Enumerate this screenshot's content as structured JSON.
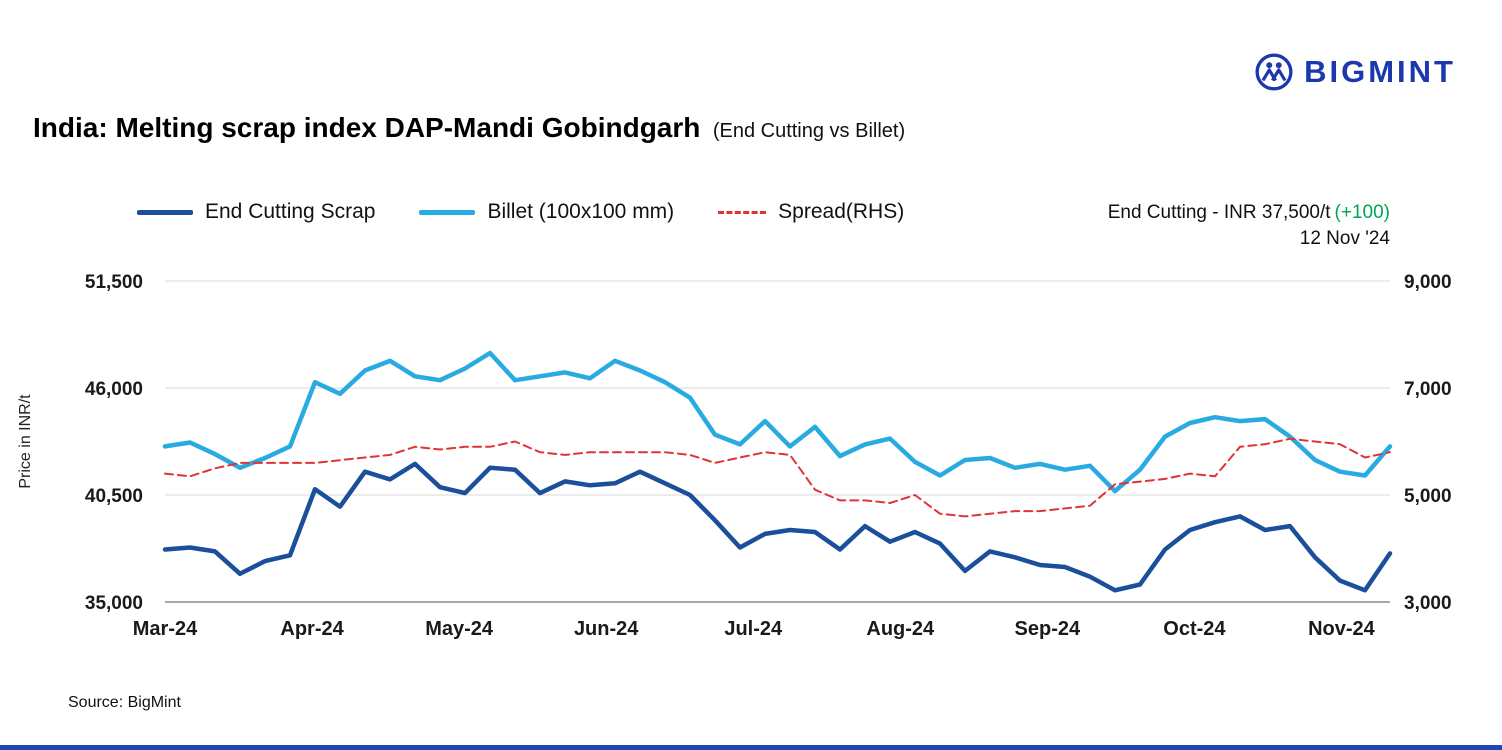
{
  "logo": {
    "text": "BIGMINT"
  },
  "title": {
    "main": "India: Melting scrap index DAP-Mandi Gobindgarh",
    "sub": "(End Cutting vs Billet)"
  },
  "annotation": {
    "text": "End Cutting - INR 37,500/t",
    "change": "(+100)",
    "date": "12 Nov '24"
  },
  "source": "Source: BigMint",
  "colors": {
    "navy": "#1b4e9b",
    "cyan": "#29abe2",
    "red": "#e03434",
    "green": "#00a651",
    "logo_blue": "#1b38ad",
    "grid": "#d9d9d9",
    "axis": "#8c8c8c",
    "footer_bar": "#2046b3"
  },
  "chart_data": {
    "type": "line",
    "title": "India: Melting scrap index DAP-Mandi Gobindgarh (End Cutting vs Billet)",
    "x_axis": {
      "tick_labels": [
        "Mar-24",
        "Apr-24",
        "May-24",
        "Jun-24",
        "Jul-24",
        "Aug-24",
        "Sep-24",
        "Oct-24",
        "Nov-24"
      ],
      "tick_months": [
        0,
        1,
        2,
        3,
        4,
        5,
        6,
        7,
        8
      ],
      "max_months": 8.33
    },
    "left_axis": {
      "label": "Price in INR/t",
      "min": 35000,
      "max": 51500,
      "ticks": [
        35000,
        40500,
        46000,
        51500
      ],
      "tick_labels": [
        "35,000",
        "40,500",
        "46,000",
        "51,500"
      ]
    },
    "right_axis": {
      "min": 3000,
      "max": 9000,
      "ticks": [
        3000,
        5000,
        7000,
        9000
      ],
      "tick_labels": [
        "3,000",
        "5,000",
        "7,000",
        "9,000"
      ]
    },
    "grid": "horizontal",
    "legend_position": "top",
    "series": [
      {
        "name": "End Cutting Scrap",
        "axis": "left",
        "color": "#1b4e9b",
        "style": "solid",
        "width": 4.5,
        "values": [
          37700,
          37800,
          37600,
          36450,
          37100,
          37400,
          40800,
          39900,
          41700,
          41300,
          42100,
          40900,
          40600,
          41900,
          41800,
          40600,
          41200,
          41000,
          41100,
          41700,
          41100,
          40500,
          39200,
          37800,
          38500,
          38700,
          38600,
          37700,
          38900,
          38100,
          38600,
          38000,
          36600,
          37600,
          37300,
          36900,
          36800,
          36300,
          35600,
          35900,
          37700,
          38700,
          39100,
          39400,
          38700,
          38900,
          37300,
          36100,
          35600,
          37500
        ]
      },
      {
        "name": "Billet (100x100 mm)",
        "axis": "left",
        "color": "#29abe2",
        "style": "solid",
        "width": 4.5,
        "values": [
          43000,
          43200,
          42600,
          41900,
          42400,
          43000,
          46300,
          45700,
          46900,
          47400,
          46600,
          46400,
          47000,
          47800,
          46400,
          46600,
          46800,
          46500,
          47400,
          46900,
          46300,
          45500,
          43600,
          43100,
          44300,
          43000,
          44000,
          42500,
          43100,
          43400,
          42200,
          41500,
          42300,
          42400,
          41900,
          42100,
          41800,
          42000,
          40700,
          41800,
          43500,
          44200,
          44500,
          44300,
          44400,
          43500,
          42300,
          41700,
          41500,
          43000
        ]
      },
      {
        "name": "Spread(RHS)",
        "axis": "right",
        "color": "#e03434",
        "style": "dashed",
        "width": 2,
        "values": [
          5400,
          5350,
          5500,
          5600,
          5600,
          5600,
          5600,
          5650,
          5700,
          5750,
          5900,
          5850,
          5900,
          5900,
          6000,
          5800,
          5750,
          5800,
          5800,
          5800,
          5800,
          5750,
          5600,
          5700,
          5800,
          5750,
          5100,
          4900,
          4900,
          4850,
          5000,
          4650,
          4600,
          4650,
          4700,
          4700,
          4750,
          4800,
          5200,
          5250,
          5300,
          5400,
          5350,
          5900,
          5950,
          6050,
          6000,
          5950,
          5700,
          5800
        ]
      }
    ]
  }
}
